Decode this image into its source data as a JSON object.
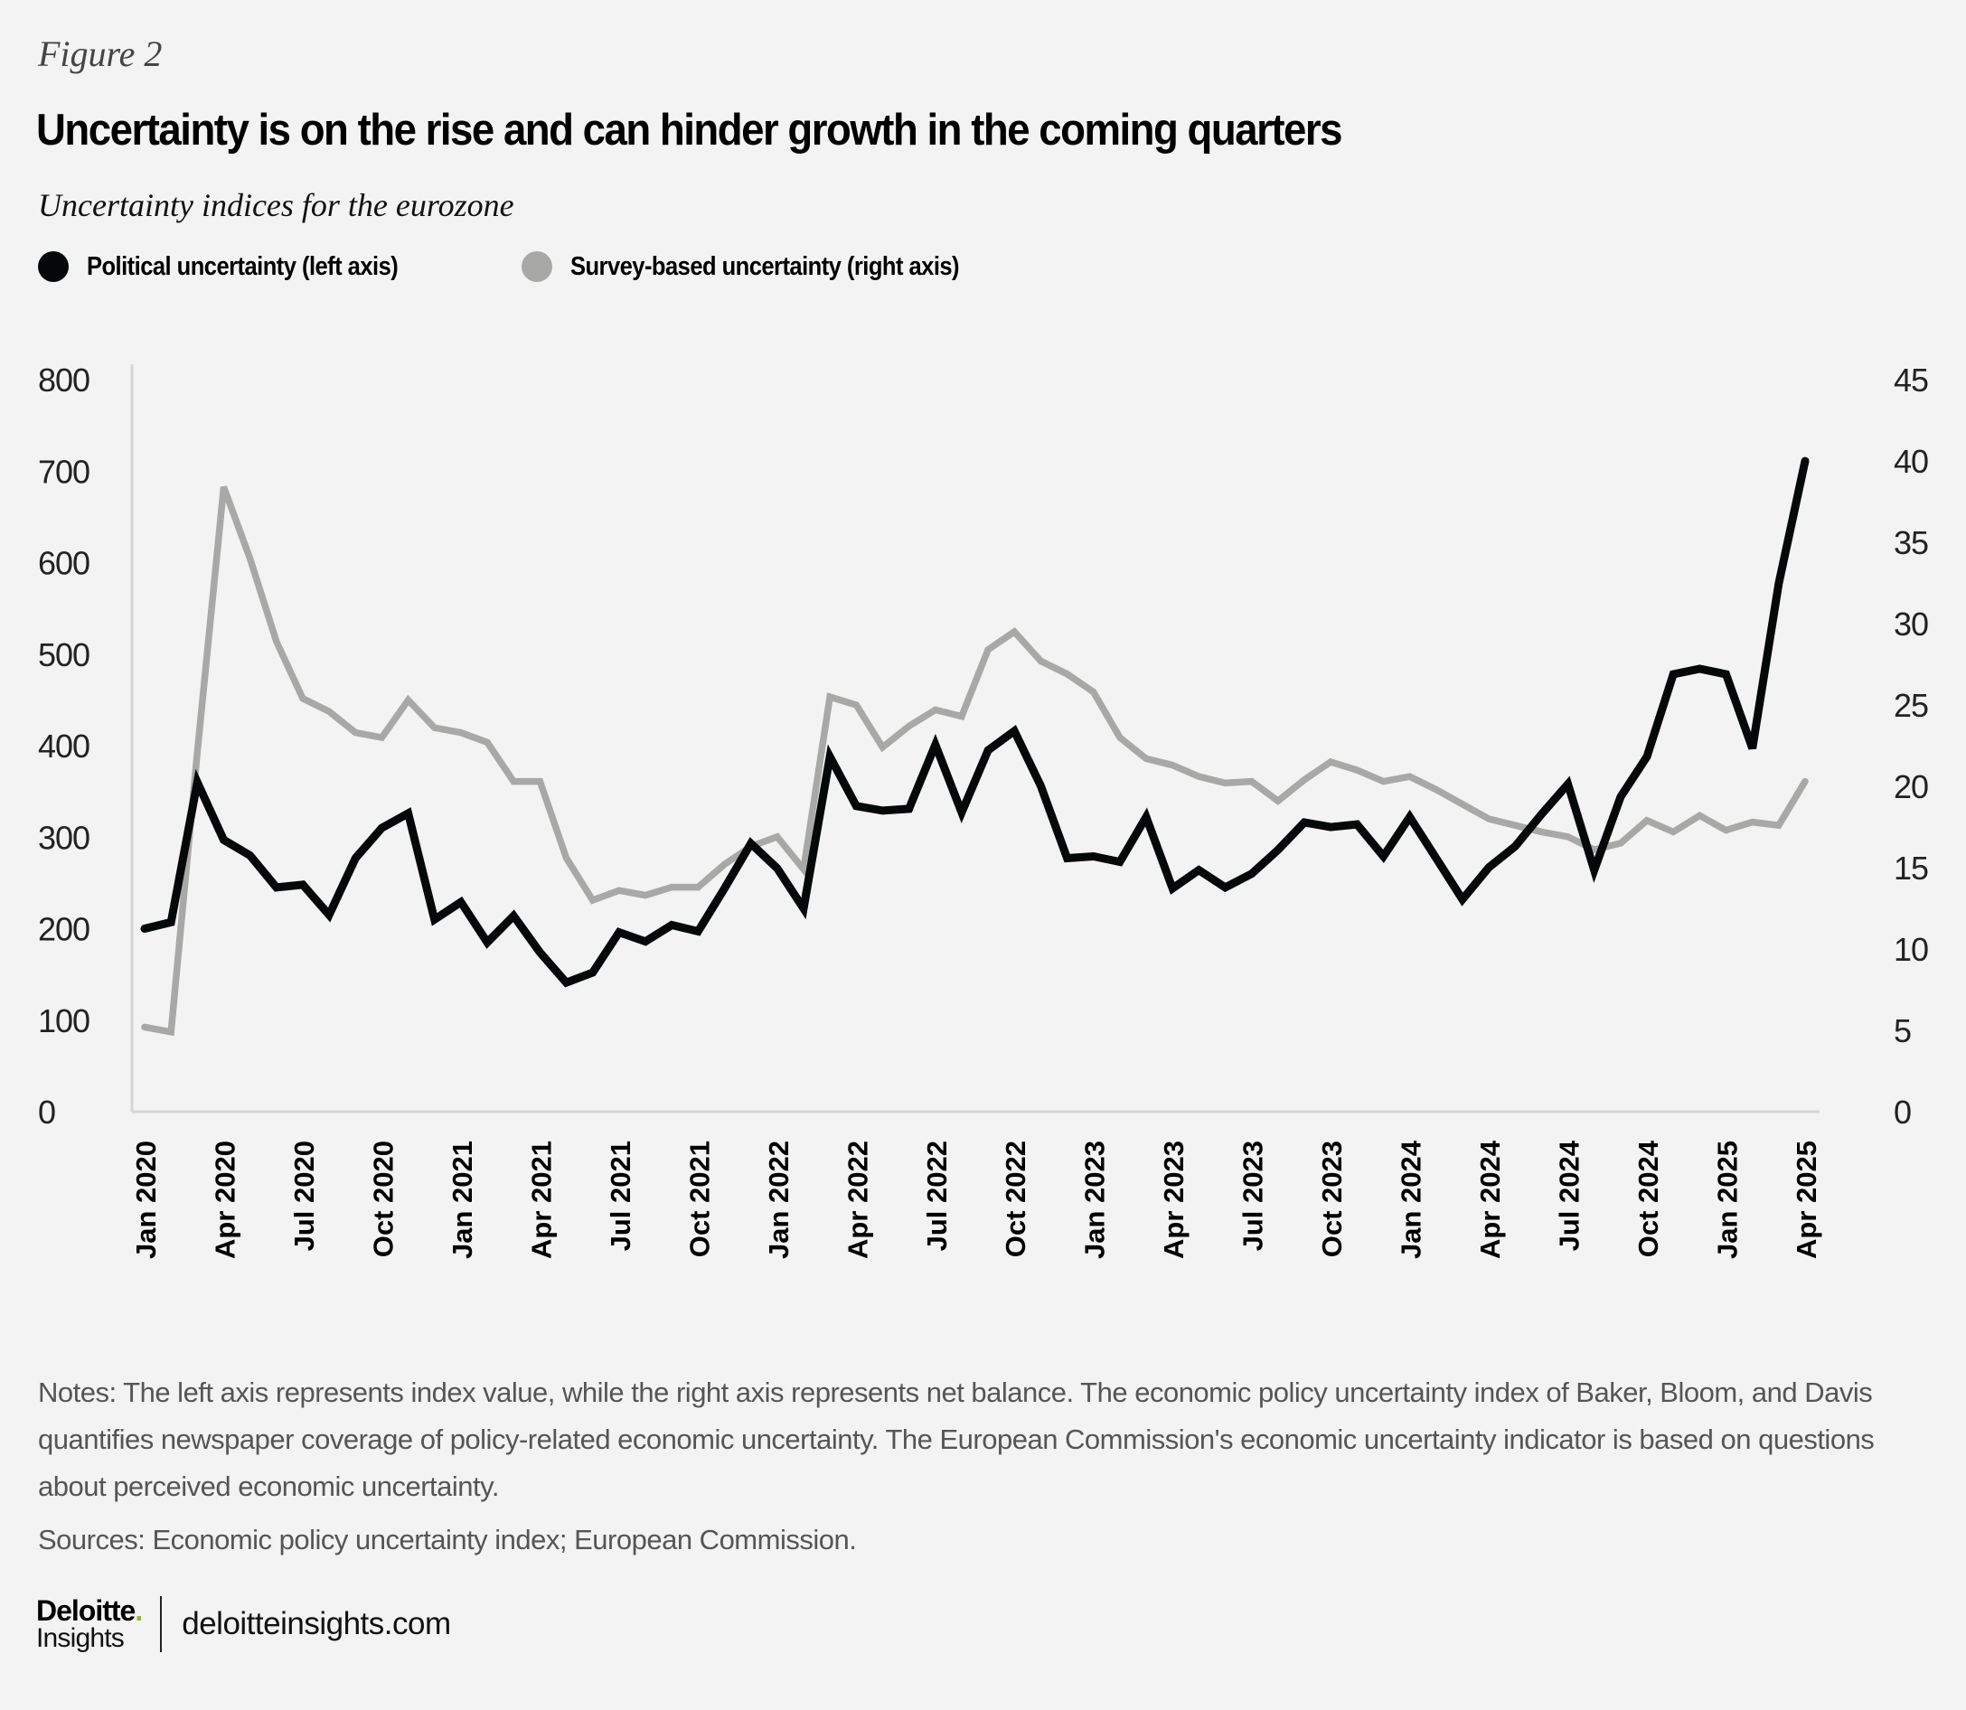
{
  "figure_label": "Figure 2",
  "title": "Uncertainty is on the rise and can hinder growth in the coming quarters",
  "subtitle": "Uncertainty indices for the eurozone",
  "legend": [
    {
      "label": "Political uncertainty (left axis)",
      "color": "#050808"
    },
    {
      "label": "Survey-based uncertainty (right axis)",
      "color": "#a8a8a7"
    }
  ],
  "notes": "Notes: The left axis represents index value, while the right axis represents net balance. The economic policy uncertainty index of Baker, Bloom, and Davis quantifies newspaper coverage of policy-related economic uncertainty. The European Commission's economic uncertainty indicator is based on questions about perceived economic uncertainty.",
  "sources": "Sources: Economic policy uncertainty index; European Commission.",
  "footer": {
    "brand": "Deloitte",
    "brand_dot": ".",
    "brand_sub": "Insights",
    "url": "deloitteinsights.com",
    "accent_color": "#86bc25"
  },
  "chart_data": {
    "type": "line",
    "title": "Uncertainty is on the rise and can hinder growth in the coming quarters",
    "subtitle": "Uncertainty indices for the eurozone",
    "xlabel": "",
    "ylabel_left": "Index value",
    "ylabel_right": "Net balance",
    "ylim_left": [
      0,
      800
    ],
    "ylim_right": [
      0,
      45
    ],
    "yticks_left": [
      "0",
      "100",
      "200",
      "300",
      "400",
      "500",
      "600",
      "700",
      "800"
    ],
    "yticks_right": [
      "0",
      "5",
      "10",
      "15",
      "20",
      "25",
      "30",
      "35",
      "40",
      "45"
    ],
    "grid": false,
    "legend_position": "top-left",
    "x_tick_labels": [
      "Jan 2020",
      "Apr 2020",
      "Jul 2020",
      "Oct 2020",
      "Jan 2021",
      "Apr 2021",
      "Jul 2021",
      "Oct 2021",
      "Jan 2022",
      "Apr 2022",
      "Jul 2022",
      "Oct 2022",
      "Jan 2023",
      "Apr 2023",
      "Jul 2023",
      "Oct 2023",
      "Jan 2024",
      "Apr 2024",
      "Jul 2024",
      "Oct 2024",
      "Jan 2025",
      "Apr 2025"
    ],
    "x": [
      "2020-01",
      "2020-02",
      "2020-03",
      "2020-04",
      "2020-05",
      "2020-06",
      "2020-07",
      "2020-08",
      "2020-09",
      "2020-10",
      "2020-11",
      "2020-12",
      "2021-01",
      "2021-02",
      "2021-03",
      "2021-04",
      "2021-05",
      "2021-06",
      "2021-07",
      "2021-08",
      "2021-09",
      "2021-10",
      "2021-11",
      "2021-12",
      "2022-01",
      "2022-02",
      "2022-03",
      "2022-04",
      "2022-05",
      "2022-06",
      "2022-07",
      "2022-08",
      "2022-09",
      "2022-10",
      "2022-11",
      "2022-12",
      "2023-01",
      "2023-02",
      "2023-03",
      "2023-04",
      "2023-05",
      "2023-06",
      "2023-07",
      "2023-08",
      "2023-09",
      "2023-10",
      "2023-11",
      "2023-12",
      "2024-01",
      "2024-02",
      "2024-03",
      "2024-04",
      "2024-05",
      "2024-06",
      "2024-07",
      "2024-08",
      "2024-09",
      "2024-10",
      "2024-11",
      "2024-12",
      "2025-01",
      "2025-02",
      "2025-03",
      "2025-04"
    ],
    "series": [
      {
        "name": "Political uncertainty (left axis)",
        "axis": "left",
        "color": "#050808",
        "values": [
          200,
          207,
          360,
          297,
          280,
          245,
          248,
          215,
          277,
          310,
          326,
          210,
          229,
          185,
          214,
          174,
          141,
          152,
          196,
          186,
          204,
          197,
          244,
          293,
          266,
          222,
          388,
          334,
          329,
          331,
          401,
          327,
          395,
          416,
          356,
          277,
          279,
          273,
          322,
          244,
          264,
          245,
          260,
          286,
          316,
          311,
          314,
          279,
          322,
          277,
          232,
          267,
          290,
          325,
          358,
          264,
          344,
          388,
          478,
          484,
          478,
          397,
          577,
          711
        ]
      },
      {
        "name": "Survey-based uncertainty (right axis)",
        "axis": "right",
        "color": "#a8a8a7",
        "values": [
          5.2,
          4.9,
          22.1,
          38.4,
          34.0,
          28.9,
          25.4,
          24.6,
          23.3,
          23.0,
          25.3,
          23.6,
          23.3,
          22.7,
          20.3,
          20.3,
          15.6,
          13.0,
          13.6,
          13.3,
          13.8,
          13.8,
          15.2,
          16.3,
          16.9,
          14.9,
          25.5,
          25.0,
          22.4,
          23.7,
          24.7,
          24.3,
          28.4,
          29.5,
          27.7,
          26.9,
          25.8,
          23.0,
          21.7,
          21.3,
          20.6,
          20.2,
          20.3,
          19.1,
          20.4,
          21.5,
          21.0,
          20.3,
          20.6,
          19.8,
          18.9,
          18.0,
          17.6,
          17.2,
          16.9,
          16.1,
          16.5,
          17.9,
          17.2,
          18.2,
          17.3,
          17.8,
          17.6,
          20.3
        ]
      }
    ]
  }
}
